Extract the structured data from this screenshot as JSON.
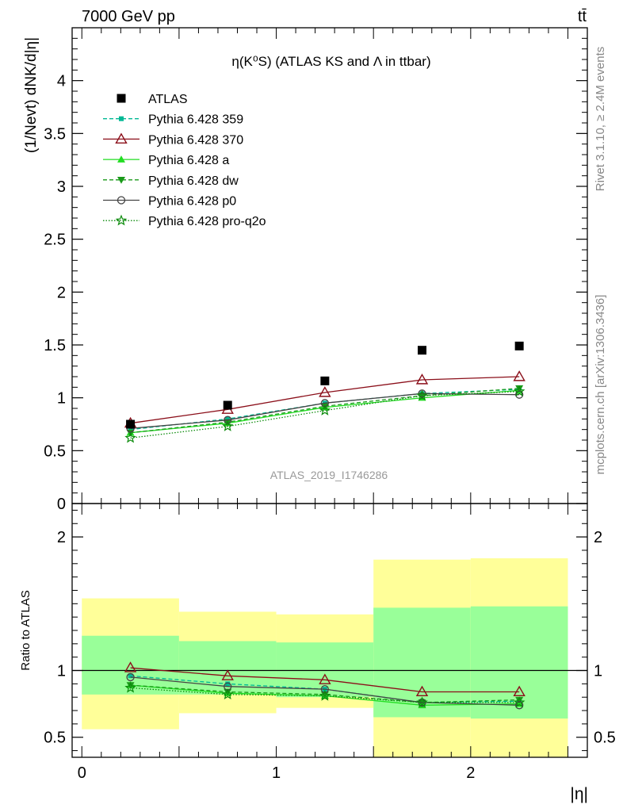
{
  "header": {
    "energy_label": "7000 GeV pp",
    "process_label": "tt̄"
  },
  "side_labels": {
    "rivet": "Rivet 3.1.10, ≥ 2.4M events",
    "mcplots": "mcplots.cern.ch [arXiv:1306.3436]"
  },
  "watermark": "ATLAS_2019_I1746286",
  "chart_data": [
    {
      "type": "line",
      "title": "η(K⁰S) (ATLAS KS and Λ in ttbar)",
      "ylabel": "(1/Nevt) dNK/d|η|",
      "xlabel": "",
      "xlim": [
        -0.05,
        2.6
      ],
      "ylim": [
        0,
        4.5
      ],
      "x": [
        0.25,
        0.75,
        1.25,
        1.75,
        2.25
      ],
      "yticks": [
        0,
        0.5,
        1,
        1.5,
        2,
        2.5,
        3,
        3.5,
        4
      ],
      "ytick_labels": [
        "0",
        "0.5",
        "1",
        "1.5",
        "2",
        "2.5",
        "3",
        "3.5",
        "4"
      ],
      "legend_position": "top-left",
      "data": {
        "name": "ATLAS",
        "values": [
          0.75,
          0.93,
          1.16,
          1.45,
          1.49
        ],
        "marker": "square",
        "color": "#000000"
      },
      "series": [
        {
          "name": "Pythia 6.428 359",
          "values": [
            0.7,
            0.8,
            0.95,
            1.04,
            1.08
          ],
          "color": "#00b894",
          "dash": "5,3",
          "marker": "small-square"
        },
        {
          "name": "Pythia 6.428 370",
          "values": [
            0.76,
            0.89,
            1.05,
            1.17,
            1.2
          ],
          "color": "#8b0f1a",
          "dash": "",
          "marker": "open-triangle"
        },
        {
          "name": "Pythia 6.428 a",
          "values": [
            0.67,
            0.76,
            0.91,
            1.0,
            1.07
          ],
          "color": "#22dd22",
          "dash": "",
          "marker": "filled-triangle"
        },
        {
          "name": "Pythia 6.428 dw",
          "values": [
            0.67,
            0.77,
            0.92,
            1.02,
            1.09
          ],
          "color": "#1a9a1a",
          "dash": "5,3",
          "marker": "filled-triangle-down"
        },
        {
          "name": "Pythia 6.428 p0",
          "values": [
            0.71,
            0.79,
            0.95,
            1.04,
            1.03
          ],
          "color": "#444444",
          "dash": "",
          "marker": "open-circle"
        },
        {
          "name": "Pythia 6.428 pro-q2o",
          "values": [
            0.62,
            0.73,
            0.88,
            1.02,
            1.06
          ],
          "color": "#0a8a0a",
          "dash": "1.5,2",
          "marker": "star"
        }
      ]
    },
    {
      "type": "line",
      "title": "",
      "ylabel": "Ratio to ATLAS",
      "xlabel": "|η|",
      "xlim": [
        -0.05,
        2.6
      ],
      "ylim": [
        0.35,
        2.25
      ],
      "ytick_labels": [
        {
          "v": 0.5,
          "t": "0.5"
        },
        {
          "v": 1,
          "t": "1"
        },
        {
          "v": 2,
          "t": "2"
        }
      ],
      "xtick_labels": [
        {
          "v": 0,
          "t": "0"
        },
        {
          "v": 1,
          "t": "1"
        },
        {
          "v": 2,
          "t": "2"
        }
      ],
      "bins": [
        {
          "xlo": 0.0,
          "xhi": 0.5,
          "inner": [
            0.82,
            1.26
          ],
          "outer": [
            0.56,
            1.54
          ]
        },
        {
          "xlo": 0.5,
          "xhi": 1.0,
          "inner": [
            0.82,
            1.22
          ],
          "outer": [
            0.68,
            1.44
          ]
        },
        {
          "xlo": 1.0,
          "xhi": 1.5,
          "inner": [
            0.8,
            1.21
          ],
          "outer": [
            0.72,
            1.42
          ]
        },
        {
          "xlo": 1.5,
          "xhi": 2.0,
          "inner": [
            0.65,
            1.47
          ],
          "outer": [
            0.35,
            1.83
          ]
        },
        {
          "xlo": 2.0,
          "xhi": 2.5,
          "inner": [
            0.64,
            1.48
          ],
          "outer": [
            0.35,
            1.84
          ]
        }
      ],
      "x": [
        0.25,
        0.75,
        1.25,
        1.75,
        2.25
      ],
      "series": [
        {
          "name": "Pythia 6.428 359",
          "values": [
            0.96,
            0.9,
            0.86,
            0.76,
            0.77
          ],
          "color": "#00b894",
          "dash": "5,3",
          "marker": "small-square"
        },
        {
          "name": "Pythia 6.428 370",
          "values": [
            1.02,
            0.96,
            0.93,
            0.84,
            0.84
          ],
          "color": "#8b0f1a",
          "dash": "",
          "marker": "open-triangle"
        },
        {
          "name": "Pythia 6.428 a",
          "values": [
            0.89,
            0.83,
            0.81,
            0.74,
            0.75
          ],
          "color": "#22dd22",
          "dash": "",
          "marker": "filled-triangle"
        },
        {
          "name": "Pythia 6.428 dw",
          "values": [
            0.89,
            0.84,
            0.82,
            0.76,
            0.78
          ],
          "color": "#1a9a1a",
          "dash": "5,3",
          "marker": "filled-triangle-down"
        },
        {
          "name": "Pythia 6.428 p0",
          "values": [
            0.95,
            0.88,
            0.86,
            0.76,
            0.74
          ],
          "color": "#444444",
          "dash": "",
          "marker": "open-circle"
        },
        {
          "name": "Pythia 6.428 pro-q2o",
          "values": [
            0.87,
            0.82,
            0.81,
            0.76,
            0.76
          ],
          "color": "#0a8a0a",
          "dash": "1.5,2",
          "marker": "star"
        }
      ]
    }
  ]
}
